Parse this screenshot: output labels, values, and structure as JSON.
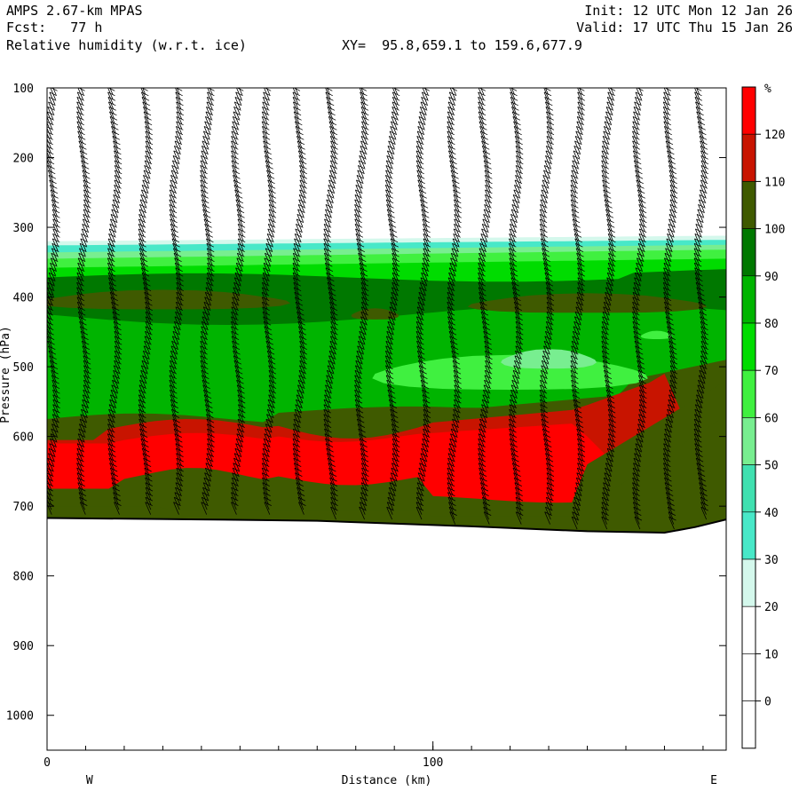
{
  "header": {
    "model": "AMPS 2.67-km MPAS",
    "forecast": "Fcst:   77 h",
    "field": "Relative humidity (w.r.t. ice)",
    "xy_range": "XY=  95.8,659.1 to 159.6,677.9",
    "init": "Init: 12 UTC Mon 12 Jan 26",
    "valid": "Valid: 17 UTC Thu 15 Jan 26"
  },
  "chart_data": {
    "type": "cross-section contour",
    "ylabel": "Pressure (hPa)",
    "xlabel": "Distance (km)",
    "y_ticks": [
      "100",
      "200",
      "300",
      "400",
      "500",
      "600",
      "700",
      "800",
      "900",
      "1000"
    ],
    "y_values": [
      100,
      200,
      300,
      400,
      500,
      600,
      700,
      800,
      900,
      1000
    ],
    "ylim": [
      100,
      1050
    ],
    "x_ticks": [
      "0",
      "100"
    ],
    "x_values": [
      0,
      100
    ],
    "xlim": [
      0,
      176
    ],
    "x_end_labels": {
      "west": "W",
      "east": "E"
    },
    "grid": false,
    "colorbar": {
      "unit": "%",
      "labels": [
        "120",
        "110",
        "100",
        "90",
        "80",
        "70",
        "60",
        "50",
        "40",
        "30",
        "20",
        "10",
        "0"
      ],
      "bins": [
        {
          "colour": "#ff0000"
        },
        {
          "colour": "#c81400"
        },
        {
          "colour": "#3f5a00"
        },
        {
          "colour": "#007800"
        },
        {
          "colour": "#00b400"
        },
        {
          "colour": "#00dc00"
        },
        {
          "colour": "#40f040"
        },
        {
          "colour": "#78ee90"
        },
        {
          "colour": "#40e0b0"
        },
        {
          "colour": "#48e8c8"
        },
        {
          "colour": "#d4f8ec"
        },
        {
          "colour": "#ffffff"
        },
        {
          "colour": "#ffffff"
        },
        {
          "colour": "#ffffff"
        }
      ]
    },
    "surface_pressure_hpa": [
      {
        "x": 0,
        "p": 717
      },
      {
        "x": 40,
        "p": 719
      },
      {
        "x": 70,
        "p": 721
      },
      {
        "x": 110,
        "p": 729
      },
      {
        "x": 140,
        "p": 736
      },
      {
        "x": 160,
        "p": 738
      },
      {
        "x": 168,
        "p": 730
      },
      {
        "x": 176,
        "p": 719
      }
    ],
    "moist_layers": [
      {
        "name": "rh_30_top",
        "colour": "#d4f8ec",
        "top": [
          {
            "x": 0,
            "p": 320
          },
          {
            "x": 176,
            "p": 312
          }
        ]
      },
      {
        "name": "rh_40_top",
        "colour": "#48e8c8",
        "top": [
          {
            "x": 0,
            "p": 326
          },
          {
            "x": 176,
            "p": 318
          }
        ]
      },
      {
        "name": "rh_60_top",
        "colour": "#78ee90",
        "top": [
          {
            "x": 0,
            "p": 336
          },
          {
            "x": 176,
            "p": 325
          }
        ]
      },
      {
        "name": "rh_70_top",
        "colour": "#40f040",
        "top": [
          {
            "x": 0,
            "p": 345
          },
          {
            "x": 176,
            "p": 332
          }
        ]
      },
      {
        "name": "rh_80_top",
        "colour": "#00dc00",
        "top": [
          {
            "x": 0,
            "p": 358
          },
          {
            "x": 176,
            "p": 345
          }
        ]
      }
    ]
  }
}
